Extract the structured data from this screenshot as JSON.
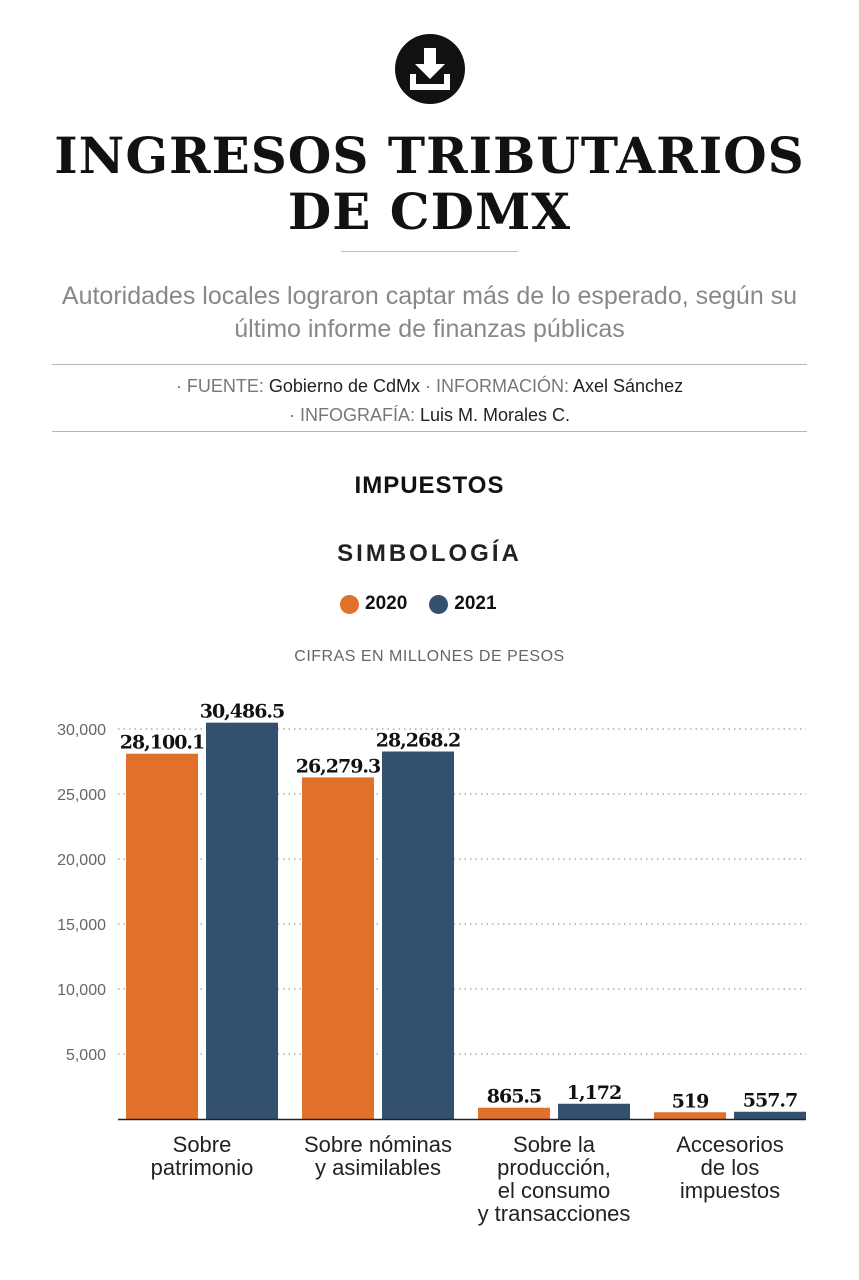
{
  "header": {
    "title_line1": "INGRESOS TRIBUTARIOS",
    "title_line2": "DE CDMX",
    "subtitle": "Autoridades locales lograron captar más de lo esperado, según su último informe de finanzas públicas"
  },
  "credits": {
    "source_label": "· FUENTE:",
    "source_value": "Gobierno de CdMx",
    "info_label": "· INFORMACIÓN:",
    "info_value": "Axel Sánchez",
    "graphics_label": "· INFOGRAFÍA:",
    "graphics_value": "Luis M. Morales C."
  },
  "section_title": "IMPUESTOS",
  "legend_title": "SIMBOLOGÍA",
  "units_note": "CIFRAS EN MILLONES DE PESOS",
  "colors": {
    "y2020": "#e0702a",
    "y2021": "#33506f",
    "text": "#111111"
  },
  "icons": {
    "download": "download-icon"
  },
  "chart_data": {
    "type": "bar",
    "categories": [
      "Sobre\npatrimonio",
      "Sobre nóminas\ny asimilables",
      "Sobre la\nproducción,\nel consumo\ny transacciones",
      "Accesorios\nde los\nimpuestos"
    ],
    "series": [
      {
        "name": "2020",
        "color": "#e0702a",
        "values": [
          28100.1,
          26279.3,
          865.5,
          519
        ],
        "labels": [
          "28,100.1",
          "26,279.3",
          "865.5",
          "519"
        ]
      },
      {
        "name": "2021",
        "color": "#33506f",
        "values": [
          30486.5,
          28268.2,
          1172,
          557.7
        ],
        "labels": [
          "30,486.5",
          "28,268.2",
          "1,172",
          "557.7"
        ]
      }
    ],
    "yticks": [
      5000,
      10000,
      15000,
      20000,
      25000,
      30000
    ],
    "ytick_labels": [
      "5,000",
      "10,000",
      "15,000",
      "20,000",
      "25,000",
      "30,000"
    ],
    "ylim": [
      0,
      30000
    ],
    "grid": true,
    "legend": "top-center"
  }
}
